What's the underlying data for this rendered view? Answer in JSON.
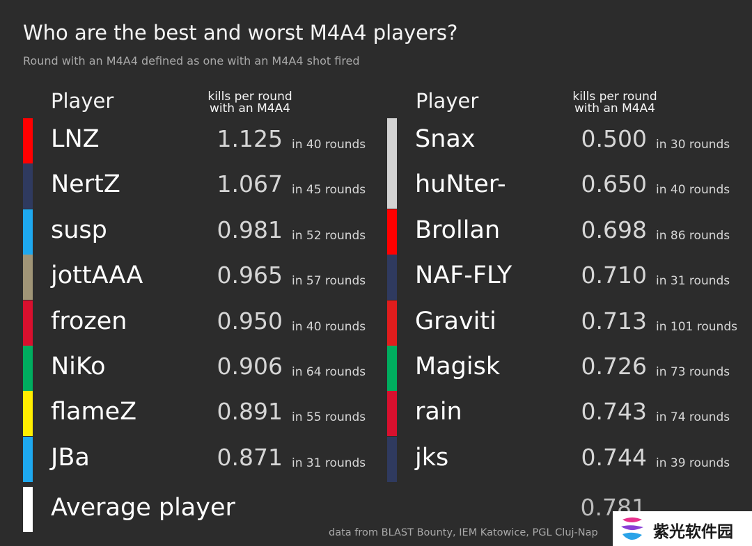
{
  "chart_data": {
    "type": "table",
    "title": "Who are the best and worst M4A4 players?",
    "subtitle": "Round with an M4A4 defined as one with an M4A4 shot fired",
    "columns": {
      "player_label": "Player",
      "metric_label_line1": "kills per round",
      "metric_label_line2": "with an M4A4"
    },
    "best": [
      {
        "name": "LNZ",
        "kpr": "1.125",
        "rounds": "in 40 rounds",
        "color": "#ff0000"
      },
      {
        "name": "NertZ",
        "kpr": "1.067",
        "rounds": "in 45 rounds",
        "color": "#2f3a5f"
      },
      {
        "name": "susp",
        "kpr": "0.981",
        "rounds": "in 52 rounds",
        "color": "#1ea8ef"
      },
      {
        "name": "jottAAA",
        "kpr": "0.965",
        "rounds": "in 57 rounds",
        "color": "#a09577"
      },
      {
        "name": "frozen",
        "kpr": "0.950",
        "rounds": "in 40 rounds",
        "color": "#d8102e"
      },
      {
        "name": "NiKo",
        "kpr": "0.906",
        "rounds": "in 64 rounds",
        "color": "#00ad5f"
      },
      {
        "name": "flameZ",
        "kpr": "0.891",
        "rounds": "in 55 rounds",
        "color": "#ffee00"
      },
      {
        "name": "JBa",
        "kpr": "0.871",
        "rounds": "in 31 rounds",
        "color": "#1ea8ef"
      }
    ],
    "worst": [
      {
        "name": "Snax",
        "kpr": "0.500",
        "rounds": "in 30 rounds",
        "color": "#d3d3d3"
      },
      {
        "name": "huNter-",
        "kpr": "0.650",
        "rounds": "in 40 rounds",
        "color": "#d3d3d3"
      },
      {
        "name": "Brollan",
        "kpr": "0.698",
        "rounds": "in 86 rounds",
        "color": "#ff0000"
      },
      {
        "name": "NAF-FLY",
        "kpr": "0.710",
        "rounds": "in 31 rounds",
        "color": "#2f3a5f"
      },
      {
        "name": "Graviti",
        "kpr": "0.713",
        "rounds": "in 101 rounds",
        "color": "#e01d1d"
      },
      {
        "name": "Magisk",
        "kpr": "0.726",
        "rounds": "in 73 rounds",
        "color": "#00ad5f"
      },
      {
        "name": "rain",
        "kpr": "0.743",
        "rounds": "in 74 rounds",
        "color": "#d8102e"
      },
      {
        "name": "jks",
        "kpr": "0.744",
        "rounds": "in 39 rounds",
        "color": "#2f3a5f"
      }
    ],
    "average": {
      "name": "Average player",
      "kpr": "0.781",
      "color": "#ffffff"
    },
    "source": "data from BLAST Bounty, IEM Katowice, PGL Cluj-Nap"
  },
  "watermark": {
    "text": "紫光软件园"
  }
}
